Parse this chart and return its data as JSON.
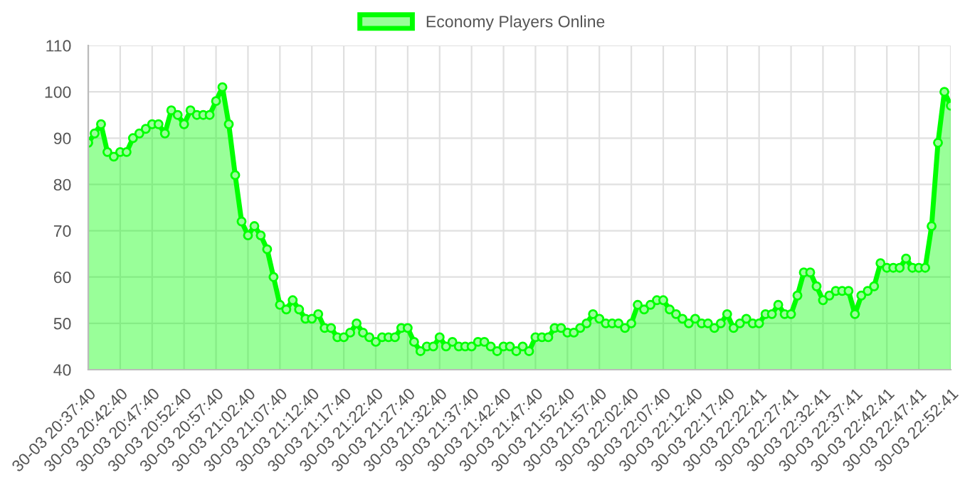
{
  "chart_data": {
    "type": "area",
    "categories": [
      "30-03 20:37:40",
      null,
      null,
      null,
      null,
      "30-03 20:42:40",
      null,
      null,
      null,
      null,
      "30-03 20:47:40",
      null,
      null,
      null,
      null,
      "30-03 20:52:40",
      null,
      null,
      null,
      null,
      "30-03 20:57:40",
      null,
      null,
      null,
      null,
      "30-03 21:02:40",
      null,
      null,
      null,
      null,
      "30-03 21:07:40",
      null,
      null,
      null,
      null,
      "30-03 21:12:40",
      null,
      null,
      null,
      null,
      "30-03 21:17:40",
      null,
      null,
      null,
      null,
      "30-03 21:22:40",
      null,
      null,
      null,
      null,
      "30-03 21:27:40",
      null,
      null,
      null,
      null,
      "30-03 21:32:40",
      null,
      null,
      null,
      null,
      "30-03 21:37:40",
      null,
      null,
      null,
      null,
      "30-03 21:42:40",
      null,
      null,
      null,
      null,
      "30-03 21:47:40",
      null,
      null,
      null,
      null,
      "30-03 21:52:40",
      null,
      null,
      null,
      null,
      "30-03 21:57:40",
      null,
      null,
      null,
      null,
      "30-03 22:02:40",
      null,
      null,
      null,
      null,
      "30-03 22:07:40",
      null,
      null,
      null,
      null,
      "30-03 22:12:40",
      null,
      null,
      null,
      null,
      "30-03 22:17:40",
      null,
      null,
      null,
      null,
      "30-03 22:22:41",
      null,
      null,
      null,
      null,
      "30-03 22:27:41",
      null,
      null,
      null,
      null,
      "30-03 22:32:41",
      null,
      null,
      null,
      null,
      "30-03 22:37:41",
      null,
      null,
      null,
      null,
      "30-03 22:42:41",
      null,
      null,
      null,
      null,
      "30-03 22:47:41",
      null,
      null,
      null,
      null,
      "30-03 22:52:41"
    ],
    "series": [
      {
        "name": "Economy Players Online",
        "color": "#00ff00",
        "values": [
          89,
          91,
          93,
          87,
          86,
          87,
          87,
          90,
          91,
          92,
          93,
          93,
          91,
          96,
          95,
          93,
          96,
          95,
          95,
          95,
          98,
          101,
          93,
          82,
          72,
          69,
          71,
          69,
          66,
          60,
          54,
          53,
          55,
          53,
          51,
          51,
          52,
          49,
          49,
          47,
          47,
          48,
          50,
          48,
          47,
          46,
          47,
          47,
          47,
          49,
          49,
          46,
          44,
          45,
          45,
          47,
          45,
          46,
          45,
          45,
          45,
          46,
          46,
          45,
          44,
          45,
          45,
          44,
          45,
          44,
          47,
          47,
          47,
          49,
          49,
          48,
          48,
          49,
          50,
          52,
          51,
          50,
          50,
          50,
          49,
          50,
          54,
          53,
          54,
          55,
          55,
          53,
          52,
          51,
          50,
          51,
          50,
          50,
          49,
          50,
          52,
          49,
          50,
          51,
          50,
          50,
          52,
          52,
          54,
          52,
          52,
          56,
          61,
          61,
          58,
          55,
          56,
          57,
          57,
          57,
          52,
          56,
          57,
          58,
          63,
          62,
          62,
          62,
          64,
          62,
          62,
          62,
          71,
          89,
          100,
          97
        ]
      }
    ],
    "ylim": [
      40,
      110
    ],
    "yticks": [
      40,
      50,
      60,
      70,
      80,
      90,
      100,
      110
    ],
    "grid": true,
    "legend": "top",
    "marker": "circle",
    "line_style": "solid"
  }
}
